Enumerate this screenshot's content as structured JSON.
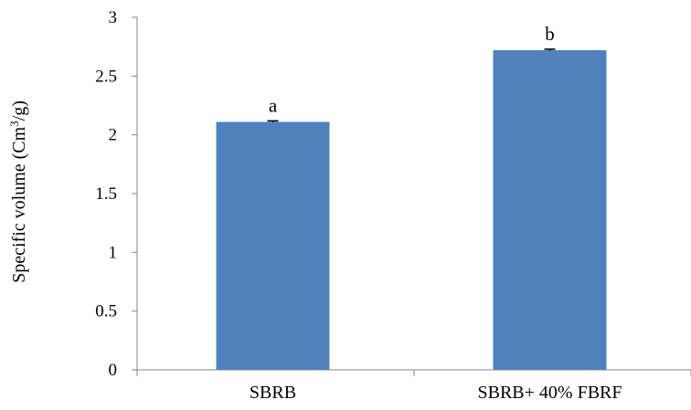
{
  "chart_data": {
    "type": "bar",
    "title": "",
    "xlabel": "",
    "ylabel": "Specific volume (Cm",
    "ylabel_superscript": "3",
    "ylabel_suffix": "/g)",
    "ylim": [
      0,
      3
    ],
    "yticks": [
      "0",
      "0.5",
      "1",
      "1.5",
      "2",
      "2.5",
      "3"
    ],
    "categories": [
      "SBRB",
      "SBRB+ 40% FBRF"
    ],
    "values": [
      2.11,
      2.72
    ],
    "errors": [
      0.005,
      0.005
    ],
    "annotations": [
      "a",
      "b"
    ],
    "grid": false,
    "legend": "none",
    "bar_color": "#4f81bd"
  }
}
